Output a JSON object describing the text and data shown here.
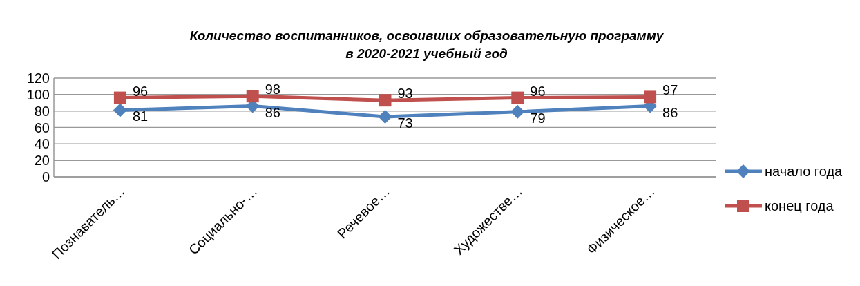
{
  "chart_data": {
    "type": "line",
    "title": "Количество воспитанников, освоивших образовательную программу\nв 2020-2021 учебный год",
    "categories": [
      "Познаватель…",
      "Социально-…",
      "Речевое…",
      "Художестве…",
      "Физическое…"
    ],
    "series": [
      {
        "name": "начало года",
        "color": "#4f81bd",
        "marker": "diamond",
        "values": [
          81,
          86,
          73,
          79,
          86
        ]
      },
      {
        "name": "конец года",
        "color": "#c0504d",
        "marker": "square",
        "values": [
          96,
          98,
          93,
          96,
          97
        ]
      }
    ],
    "ylim": [
      0,
      120
    ],
    "yticks": [
      0,
      20,
      40,
      60,
      80,
      100,
      120
    ],
    "grid": "y",
    "legend": "right",
    "data_labels": true
  }
}
